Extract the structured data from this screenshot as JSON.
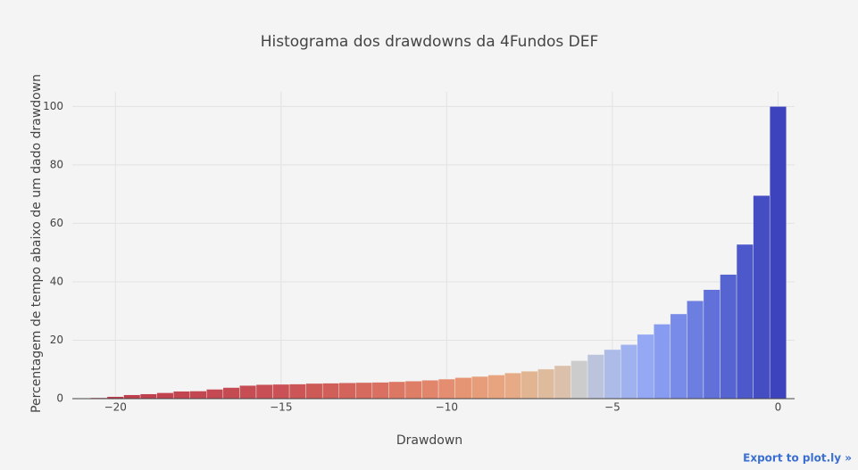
{
  "chart_data": {
    "type": "histogram",
    "title": "Histograma dos drawdowns da 4Fundos DEF",
    "xlabel": "Drawdown",
    "ylabel": "Percentagem de tempo abaixo de um dado drawdown",
    "bins": [
      -20.75,
      -20.25,
      -19.75,
      -19.25,
      -18.75,
      -18.25,
      -17.75,
      -17.25,
      -16.75,
      -16.25,
      -15.75,
      -15.25,
      -14.75,
      -14.25,
      -13.75,
      -13.25,
      -12.75,
      -12.25,
      -11.75,
      -11.25,
      -10.75,
      -10.25,
      -9.75,
      -9.25,
      -8.75,
      -8.25,
      -7.75,
      -7.25,
      -6.75,
      -6.25,
      -5.75,
      -5.25,
      -4.75,
      -4.25,
      -3.75,
      -3.25,
      -2.75,
      -2.25,
      -1.75,
      -1.25,
      -0.75,
      -0.25,
      0.25
    ],
    "values": [
      0.3,
      0.7,
      1.3,
      1.6,
      2.0,
      2.5,
      2.6,
      3.2,
      3.8,
      4.5,
      4.8,
      4.9,
      5.0,
      5.2,
      5.3,
      5.4,
      5.5,
      5.6,
      5.8,
      6.0,
      6.3,
      6.7,
      7.2,
      7.6,
      8.1,
      8.8,
      9.4,
      10.1,
      11.3,
      13.0,
      15.1,
      16.8,
      18.5,
      22.0,
      25.5,
      29.0,
      33.5,
      37.3,
      42.5,
      52.8,
      69.5,
      100
    ],
    "colors": [
      "#bd3b4b",
      "#be3d4c",
      "#bf3f4d",
      "#c0414e",
      "#c1434f",
      "#c24550",
      "#c34751",
      "#c44952",
      "#c54b53",
      "#c64d54",
      "#c84f55",
      "#ca5256",
      "#cc5657",
      "#ce5a58",
      "#d05f5a",
      "#d3645c",
      "#d66a5e",
      "#d97061",
      "#dc7764",
      "#df7e67",
      "#e2866b",
      "#e48d70",
      "#e69574",
      "#e79d79",
      "#e7a47f",
      "#e6ab86",
      "#e2b592",
      "#dfbb9d",
      "#dbc0ab",
      "#cccccc",
      "#bcc3dc",
      "#adbbe8",
      "#a0b1ef",
      "#94a8f3",
      "#879bf0",
      "#798be8",
      "#6d7ee1",
      "#6171d9",
      "#5664d1",
      "#4d58ca",
      "#454dc3",
      "#3d43bc"
    ],
    "xlim": [
      -21.3,
      0.5
    ],
    "xticks": [
      {
        "value": -20,
        "label": "−20"
      },
      {
        "value": -15,
        "label": "−15"
      },
      {
        "value": -10,
        "label": "−10"
      },
      {
        "value": -5,
        "label": "−5"
      },
      0
    ],
    "ylim": [
      0,
      105
    ],
    "yticks": [
      0,
      20,
      40,
      60,
      80,
      100
    ],
    "grid": true,
    "export_link": "Export to plot.ly »"
  }
}
